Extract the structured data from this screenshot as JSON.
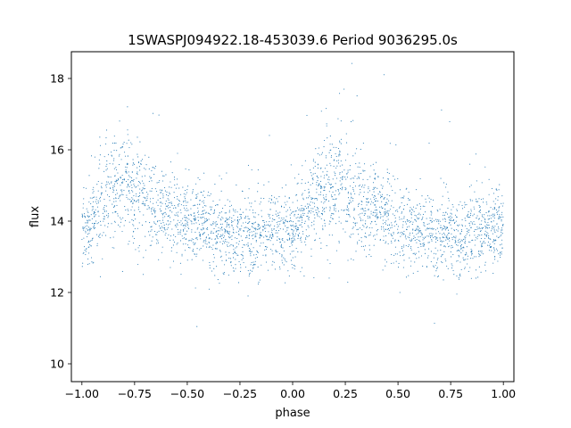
{
  "chart_data": {
    "type": "scatter",
    "title": "1SWASPJ094922.18-453039.6 Period 9036295.0s",
    "xlabel": "phase",
    "ylabel": "flux",
    "xlim": [
      -1.05,
      1.05
    ],
    "ylim": [
      9.5,
      18.75
    ],
    "x_ticks": [
      -1.0,
      -0.75,
      -0.5,
      -0.25,
      0.0,
      0.25,
      0.5,
      0.75,
      1.0
    ],
    "x_tick_labels": [
      "−1.00",
      "−0.75",
      "−0.50",
      "−0.25",
      "0.00",
      "0.25",
      "0.50",
      "0.75",
      "1.00"
    ],
    "y_ticks": [
      10,
      12,
      14,
      16,
      18
    ],
    "y_tick_labels": [
      "10",
      "12",
      "14",
      "16",
      "18"
    ],
    "grid": false,
    "legend": "none",
    "marker_color": "#1f77b4",
    "series": [
      {
        "name": "",
        "note_values_describe_phase_folded_light_curve": false,
        "profile_phase": [
          0.0,
          0.04,
          0.08,
          0.12,
          0.16,
          0.2,
          0.24,
          0.28,
          0.32,
          0.36,
          0.4,
          0.44,
          0.48,
          0.52,
          0.56,
          0.6,
          0.64,
          0.68,
          0.72,
          0.76,
          0.8,
          0.84,
          0.88,
          0.92,
          0.96,
          1.0
        ],
        "profile_median_flux": [
          13.8,
          14.0,
          14.3,
          14.7,
          14.9,
          15.0,
          14.9,
          14.7,
          14.5,
          14.3,
          14.3,
          14.2,
          14.0,
          13.9,
          13.9,
          13.8,
          13.7,
          13.6,
          13.6,
          13.7,
          13.6,
          13.6,
          13.7,
          13.7,
          13.8,
          13.8
        ]
      }
    ]
  }
}
